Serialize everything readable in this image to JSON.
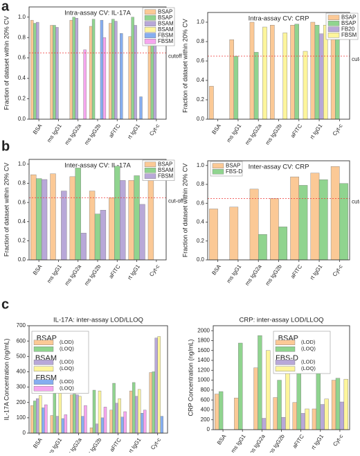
{
  "panel_labels": [
    "a",
    "b",
    "c"
  ],
  "chart_data": [
    {
      "type": "bar",
      "title": "Intra-assay CV: IL-17A",
      "y_label": "Fraction of dataset within 20% CV",
      "categories": [
        "BSA",
        "ms IgG1",
        "ms IgG2a",
        "ms IgG2b",
        "aFITC",
        "rt IgG1",
        "Cyt-c"
      ],
      "series": [
        {
          "name": "BSAP",
          "color": "#fbc996",
          "values": [
            0.97,
            0.92,
            0.97,
            0.91,
            0.94,
            0.81,
            0.99
          ]
        },
        {
          "name": "BSAP",
          "color": "#90d48f",
          "values": [
            0.94,
            0.92,
            1.0,
            0.98,
            0.98,
            1.0,
            1.0
          ]
        },
        {
          "name": "BSAM",
          "color": "#b8a8d8",
          "values": [
            0.95,
            0.9,
            0.99,
            null,
            0.96,
            0.92,
            1.0
          ]
        },
        {
          "name": "BSAM",
          "color": "#fdf59c",
          "values": [
            null,
            null,
            null,
            null,
            null,
            null,
            null
          ]
        },
        {
          "name": "FBSM",
          "color": "#86aef0",
          "values": [
            null,
            null,
            null,
            0.97,
            0.84,
            0.22,
            null
          ]
        },
        {
          "name": "FBSM",
          "color": "#f6a6ee",
          "values": [
            null,
            null,
            0.68,
            0.8,
            null,
            null,
            null
          ]
        }
      ],
      "ylim": [
        0,
        1.1
      ],
      "yticks": [
        {
          "value": 0,
          "label": "0.0"
        },
        {
          "value": 0.2,
          "label": "0.2"
        },
        {
          "value": 0.4,
          "label": "0.4"
        },
        {
          "value": 0.6,
          "label": "0.6"
        },
        {
          "value": 0.8,
          "label": "0.8"
        },
        {
          "value": 1,
          "label": "1.0"
        }
      ],
      "cutoff": {
        "value": 0.65,
        "label": "cutoff"
      },
      "legend": "upper right"
    },
    {
      "type": "bar",
      "title": "Intra-assay CV: CRP",
      "y_label": "Fraction of dataset within 20% CV",
      "categories": [
        "BSA",
        "ms IgG1",
        "ms IgG2a",
        "ms IgG2b",
        "aFITC",
        "rt IgG1",
        "Cyt-c"
      ],
      "series": [
        {
          "name": "BSAP",
          "color": "#fbc996",
          "values": [
            0.34,
            0.82,
            1.0,
            0.97,
            0.97,
            1.0,
            1.0
          ]
        },
        {
          "name": "BSAP",
          "color": "#90d48f",
          "values": [
            null,
            0.65,
            0.69,
            null,
            0.98,
            0.97,
            0.97
          ]
        },
        {
          "name": "FB20",
          "color": "#b8a8d8",
          "values": [
            null,
            null,
            null,
            null,
            null,
            0.88,
            null
          ]
        },
        {
          "name": "FBSM",
          "color": "#fdf59c",
          "values": [
            null,
            null,
            0.95,
            0.89,
            0.7,
            0.97,
            null
          ]
        }
      ],
      "ylim": [
        0,
        1.1
      ],
      "yticks": [
        {
          "value": 0,
          "label": "0.0"
        },
        {
          "value": 0.2,
          "label": "0.2"
        },
        {
          "value": 0.4,
          "label": "0.4"
        },
        {
          "value": 0.6,
          "label": "0.6"
        },
        {
          "value": 0.8,
          "label": "0.8"
        },
        {
          "value": 1,
          "label": "1.0"
        }
      ],
      "cutoff": {
        "value": 0.65,
        "label": "cut-off"
      },
      "legend": "upper right"
    },
    {
      "type": "bar",
      "title": "Inter-assay CV: IL-17A",
      "y_label": "Fraction of dataset within 20% CV",
      "categories": [
        "BSA",
        "ms IgG1",
        "ms IgG2a",
        "ms IgG2b",
        "aFITC",
        "rt IgG1",
        "Cyt-c"
      ],
      "series": [
        {
          "name": "BSAP",
          "color": "#fbc996",
          "values": [
            0.89,
            0.9,
            0.87,
            0.72,
            0.65,
            0.83,
            0.88
          ]
        },
        {
          "name": "BSAM",
          "color": "#90d48f",
          "values": [
            0.85,
            null,
            0.96,
            0.48,
            0.98,
            0.88,
            null
          ]
        },
        {
          "name": "FBSM",
          "color": "#b8a8d8",
          "values": [
            0.84,
            0.72,
            0.28,
            0.52,
            0.83,
            0.58,
            null
          ]
        }
      ],
      "ylim": [
        0,
        1.05
      ],
      "yticks": [
        {
          "value": 0,
          "label": "0.0"
        },
        {
          "value": 0.2,
          "label": "0.2"
        },
        {
          "value": 0.4,
          "label": "0.4"
        },
        {
          "value": 0.6,
          "label": "0.6"
        },
        {
          "value": 0.8,
          "label": "0.8"
        },
        {
          "value": 1,
          "label": "1.0"
        }
      ],
      "cutoff": {
        "value": 0.65,
        "label": "cut-off"
      },
      "legend": "upper right"
    },
    {
      "type": "bar",
      "title": "Inter-assay CV: CRP",
      "y_label": "Fraction of dataset within 20% CV",
      "categories": [
        "BSA",
        "ms IgG1",
        "ms IgG2a",
        "ms IgG2b",
        "aFITC",
        "rt IgG1",
        "Cyt-c"
      ],
      "series": [
        {
          "name": "BSAP",
          "color": "#fbc996",
          "values": [
            0.54,
            0.56,
            0.75,
            0.65,
            0.88,
            0.92,
            0.99
          ]
        },
        {
          "name": "FBS-D",
          "color": "#90d48f",
          "values": [
            null,
            null,
            0.27,
            0.35,
            0.79,
            0.85,
            0.81
          ]
        }
      ],
      "ylim": [
        0,
        1.05
      ],
      "yticks": [
        {
          "value": 0,
          "label": "0.0"
        },
        {
          "value": 0.2,
          "label": "0.2"
        },
        {
          "value": 0.4,
          "label": "0.4"
        },
        {
          "value": 0.6,
          "label": "0.6"
        },
        {
          "value": 0.8,
          "label": "0.8"
        },
        {
          "value": 1,
          "label": "1.0"
        }
      ],
      "cutoff": {
        "value": 0.65,
        "label": "cut-off"
      },
      "legend": "upper left"
    },
    {
      "type": "bar",
      "title": "IL-17A: inter-assay LOD/LLOQ",
      "y_label": "IL-17A Concentration (ng/mL)",
      "categories": [
        "BSA",
        "ms IgG1",
        "ms IgG2a",
        "ms IgG2b",
        "aFITC",
        "rt IgG1",
        "Cyt-c"
      ],
      "series": [
        {
          "group": "BSAP",
          "name": "(LOD)",
          "color": "#fbc996",
          "values": [
            180,
            115,
            250,
            35,
            150,
            275,
            395
          ]
        },
        {
          "group": "BSAP",
          "name": "(LOQ)",
          "color": "#90d48f",
          "values": [
            210,
            260,
            255,
            280,
            325,
            330,
            400
          ]
        },
        {
          "group": "BSAM",
          "name": "(LOD)",
          "color": "#b8a8d8",
          "values": [
            225,
            110,
            250,
            60,
            195,
            240,
            620
          ]
        },
        {
          "group": "BSAM",
          "name": "(LOQ)",
          "color": "#fdf59c",
          "values": [
            245,
            275,
            240,
            275,
            225,
            285,
            630
          ]
        },
        {
          "group": "FBSM",
          "name": "(LOD)",
          "color": "#86aef0",
          "values": [
            165,
            95,
            110,
            100,
            105,
            130,
            110
          ]
        },
        {
          "group": "FBSM",
          "name": "(LOQ)",
          "color": "#f6a6ee",
          "values": [
            185,
            120,
            180,
            170,
            140,
            150,
            null
          ]
        }
      ],
      "ylim": [
        0,
        700
      ],
      "yticks": [
        0,
        100,
        200,
        300,
        400,
        500,
        600,
        700
      ],
      "legend": "upper left"
    },
    {
      "type": "bar",
      "title": "CRP: inter-assay LOD/LLOQ",
      "y_label": "CRP Concentration (ng/mL)",
      "categories": [
        "BSA",
        "ms IgG1",
        "ms IgG2a",
        "ms IgG2b",
        "aFITC",
        "rt IgG1",
        "Cyt-c"
      ],
      "series": [
        {
          "group": "BSAP",
          "name": "(LOD)",
          "color": "#fbc996",
          "values": [
            720,
            640,
            1250,
            650,
            550,
            420,
            1000
          ]
        },
        {
          "group": "BSAP",
          "name": "(LOQ)",
          "color": "#90d48f",
          "values": [
            770,
            1750,
            1900,
            1000,
            1170,
            1170,
            1040
          ]
        },
        {
          "group": "FBS-D",
          "name": "(LOD)",
          "color": "#b8a8d8",
          "values": [
            null,
            null,
            230,
            250,
            330,
            510,
            560
          ]
        },
        {
          "group": "FBS-D",
          "name": "(LOQ)",
          "color": "#fdf59c",
          "values": [
            null,
            null,
            1600,
            1720,
            420,
            620,
            1020
          ]
        }
      ],
      "ylim": [
        0,
        2100
      ],
      "yticks": [
        0,
        200,
        400,
        600,
        800,
        1000,
        1200,
        1400,
        1600,
        1800,
        2000
      ],
      "legend": "upper right"
    }
  ]
}
